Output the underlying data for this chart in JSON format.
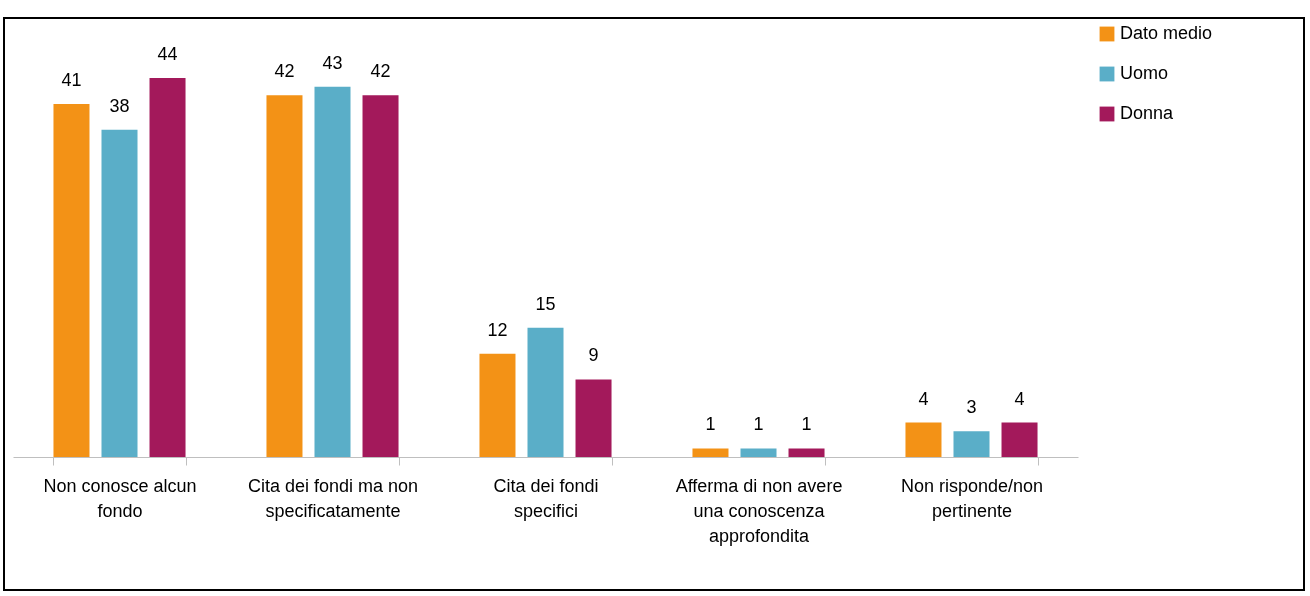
{
  "chart_data": {
    "type": "bar",
    "categories": [
      "Non conosce alcun fondo",
      "Cita dei fondi ma non specificatamente",
      "Cita dei fondi specifici",
      "Afferma di non avere una conoscenza approfondita",
      "Non risponde/non pertinente"
    ],
    "series": [
      {
        "name": "Dato medio",
        "color": "#f39216",
        "values": [
          41,
          42,
          12,
          1,
          4
        ]
      },
      {
        "name": "Uomo",
        "color": "#5aaec8",
        "values": [
          38,
          43,
          15,
          1,
          3
        ]
      },
      {
        "name": "Donna",
        "color": "#a3195b",
        "values": [
          44,
          42,
          9,
          1,
          4
        ]
      }
    ],
    "data_labels": true,
    "legend": "right",
    "grid": false
  }
}
